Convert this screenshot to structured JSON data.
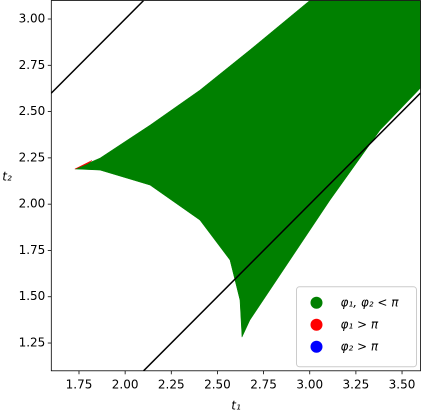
{
  "chart_data": {
    "type": "region",
    "x_label": "t₁",
    "y_label": "t₂",
    "xlim": [
      1.6,
      3.6
    ],
    "ylim": [
      1.1,
      3.1
    ],
    "xticks": [
      1.75,
      {
        "value": 2.0,
        "label": "2.00"
      },
      2.25,
      {
        "value": 2.5,
        "label": "2.50"
      },
      2.75,
      {
        "value": 3.0,
        "label": "3.00"
      },
      3.25,
      {
        "value": 3.5,
        "label": "3.50"
      }
    ],
    "yticks": [
      1.25,
      {
        "value": 1.5,
        "label": "1.50"
      },
      1.75,
      {
        "value": 2.0,
        "label": "2.00"
      },
      2.25,
      {
        "value": 2.5,
        "label": "2.50"
      },
      2.75,
      {
        "value": 3.0,
        "label": "3.00"
      }
    ],
    "legend": "lower right",
    "series": [
      {
        "name": "φ₁, φ₂ < π",
        "color": "#008000",
        "kind": "region",
        "x": [
          1.728,
          1.864,
          2.135,
          2.405,
          2.676,
          3.0,
          3.6,
          3.6,
          3.381,
          3.11,
          2.893,
          2.676,
          2.633,
          2.622,
          2.568,
          2.405,
          2.135,
          1.864
        ],
        "values": [
          2.19,
          2.249,
          2.427,
          2.616,
          2.833,
          3.1,
          3.1,
          2.627,
          2.4,
          2.022,
          1.698,
          1.374,
          1.282,
          1.482,
          1.698,
          1.914,
          2.103,
          2.184
        ]
      },
      {
        "name": "φ₁ > π",
        "color": "#ff0000",
        "kind": "region",
        "x": [
          1.728,
          1.82,
          1.8
        ],
        "values": [
          2.19,
          2.236,
          2.22
        ]
      },
      {
        "name": "φ₂ > π",
        "color": "#0000ff",
        "kind": "region",
        "x": [],
        "values": []
      },
      {
        "color": "#000000",
        "kind": "line",
        "x": [
          1.6,
          2.1
        ],
        "values": [
          2.6,
          3.1
        ]
      },
      {
        "color": "#000000",
        "kind": "line",
        "x": [
          2.1,
          3.6
        ],
        "values": [
          1.1,
          2.6
        ]
      }
    ]
  }
}
